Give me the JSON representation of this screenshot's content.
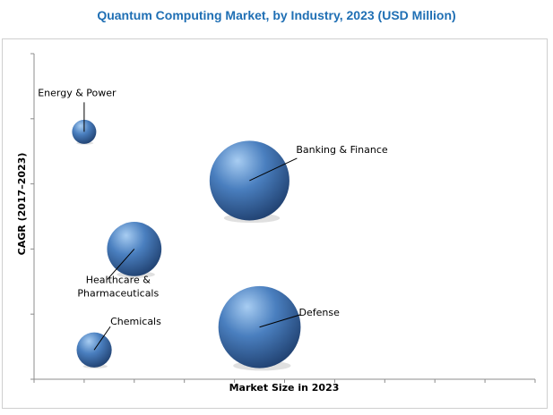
{
  "chart_data": {
    "type": "bubble",
    "title": "Quantum Computing Market, by Industry, 2023 (USD Million)",
    "xlabel": "Market Size in 2023",
    "ylabel": "CAGR (2017–2023)",
    "xaxis_ticks_labeled": false,
    "yaxis_ticks_labeled": false,
    "grid": false,
    "series": [
      {
        "name": "Energy & Power",
        "label_lines": [
          "Energy & Power"
        ],
        "x": 1.0,
        "y": 7.6,
        "size": 1.0
      },
      {
        "name": "Banking & Finance",
        "label_lines": [
          "Banking & Finance"
        ],
        "x": 4.3,
        "y": 6.1,
        "size": 3.3
      },
      {
        "name": "Healthcare & Pharmaceuticals",
        "label_lines": [
          "Healthcare &",
          "Pharmaceuticals"
        ],
        "x": 2.0,
        "y": 4.0,
        "size": 2.25
      },
      {
        "name": "Chemicals",
        "label_lines": [
          "Chemicals"
        ],
        "x": 1.2,
        "y": 0.9,
        "size": 1.45
      },
      {
        "name": "Defense",
        "label_lines": [
          "Defense"
        ],
        "x": 4.5,
        "y": 1.6,
        "size": 3.4
      }
    ],
    "colors": {
      "bubble_light": "#a8cdf2",
      "bubble_mid": "#4a7fbf",
      "bubble_dark": "#1f3f6e",
      "title": "#1f6fb4"
    }
  }
}
